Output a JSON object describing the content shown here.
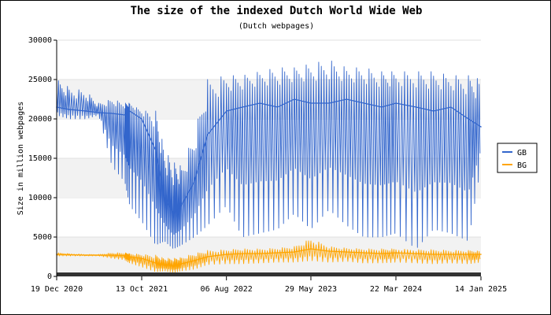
{
  "chart_data": {
    "type": "line",
    "title": "The size of the indexed Dutch World Wide Web",
    "subtitle": "(Dutch webpages)",
    "ylabel": "Size in million webpages",
    "xlabel": "",
    "ylim": [
      0,
      30000
    ],
    "yticks": [
      "0",
      "5000",
      "10000",
      "15000",
      "20000",
      "25000",
      "30000"
    ],
    "xticks": [
      "19 Dec 2020",
      "13 Oct 2021",
      "06 Aug 2022",
      "29 May 2023",
      "22 Mar 2024",
      "14 Jan 2025"
    ],
    "x_range": [
      "19 Dec 2020",
      "14 Jan 2025"
    ],
    "grid": "alternating horizontal bands",
    "legend_position": "right",
    "series": [
      {
        "name": "GB",
        "color": "#3366cc",
        "x": [
          "19 Dec 2020",
          "01 Feb 2021",
          "01 Apr 2021",
          "15 May 2021",
          "01 Jul 2021",
          "15 Aug 2021",
          "01 Sep 2021",
          "13 Oct 2021",
          "01 Dec 2021",
          "01 Jan 2022",
          "01 Feb 2022",
          "01 Mar 2022",
          "15 Apr 2022",
          "01 Jun 2022",
          "06 Aug 2022",
          "01 Oct 2022",
          "01 Dec 2022",
          "01 Feb 2023",
          "01 Apr 2023",
          "29 May 2023",
          "01 Aug 2023",
          "01 Oct 2023",
          "01 Dec 2023",
          "01 Feb 2024",
          "22 Mar 2024",
          "01 Jun 2024",
          "01 Aug 2024",
          "01 Oct 2024",
          "01 Dec 2024",
          "14 Jan 2025"
        ],
        "values": [
          21500,
          21200,
          21000,
          20800,
          20700,
          20500,
          21000,
          20000,
          16000,
          10000,
          8000,
          9000,
          12000,
          18000,
          21000,
          21500,
          22000,
          21500,
          22500,
          22000,
          22000,
          22500,
          22000,
          21500,
          22000,
          21500,
          21000,
          21500,
          20000,
          19000
        ],
        "max": [
          25000,
          24000,
          23500,
          22000,
          22500,
          22000,
          22000,
          21000,
          21000,
          16000,
          14500,
          14000,
          18000,
          25000,
          25500,
          25500,
          26000,
          26500,
          26500,
          27000,
          27500,
          26500,
          26500,
          26000,
          26000,
          26000,
          26000,
          25500,
          25500,
          25000
        ],
        "min": [
          20500,
          20000,
          20000,
          20500,
          14000,
          12000,
          9000,
          7000,
          4000,
          4500,
          3500,
          4000,
          5000,
          6500,
          9000,
          5000,
          5500,
          6000,
          8000,
          6000,
          8500,
          6500,
          5000,
          5000,
          5500,
          3500,
          6000,
          5500,
          4500,
          14000
        ]
      },
      {
        "name": "BG",
        "color": "#ffa500",
        "x": [
          "19 Dec 2020",
          "01 Feb 2021",
          "01 Apr 2021",
          "15 May 2021",
          "01 Jul 2021",
          "15 Aug 2021",
          "01 Sep 2021",
          "13 Oct 2021",
          "01 Dec 2021",
          "01 Jan 2022",
          "01 Feb 2022",
          "01 Mar 2022",
          "15 Apr 2022",
          "01 Jun 2022",
          "06 Aug 2022",
          "01 Oct 2022",
          "01 Dec 2022",
          "01 Feb 2023",
          "01 Apr 2023",
          "29 May 2023",
          "01 Aug 2023",
          "01 Oct 2023",
          "01 Dec 2023",
          "01 Feb 2024",
          "22 Mar 2024",
          "01 Jun 2024",
          "01 Aug 2024",
          "01 Oct 2024",
          "01 Dec 2024",
          "14 Jan 2025"
        ],
        "values": [
          2800,
          2750,
          2700,
          2700,
          2700,
          2650,
          2500,
          2300,
          1700,
          1500,
          1400,
          1600,
          2000,
          2500,
          2800,
          2900,
          2900,
          3000,
          3100,
          3500,
          3200,
          3100,
          3000,
          2900,
          3000,
          2900,
          2800,
          2800,
          2800,
          2800
        ],
        "max": [
          3000,
          2900,
          2800,
          2800,
          3000,
          3000,
          2900,
          2800,
          2700,
          2300,
          2300,
          2400,
          2900,
          3300,
          3400,
          3500,
          3500,
          3600,
          3800,
          4800,
          3800,
          3600,
          3500,
          3500,
          3500,
          3400,
          3400,
          3300,
          3300,
          3200
        ],
        "min": [
          2600,
          2600,
          2600,
          2600,
          2300,
          2100,
          1700,
          1200,
          600,
          700,
          500,
          700,
          900,
          1500,
          1600,
          1600,
          1700,
          1800,
          1800,
          2000,
          1800,
          1900,
          1700,
          1700,
          1800,
          1700,
          1600,
          1700,
          1600,
          1800
        ]
      }
    ]
  }
}
